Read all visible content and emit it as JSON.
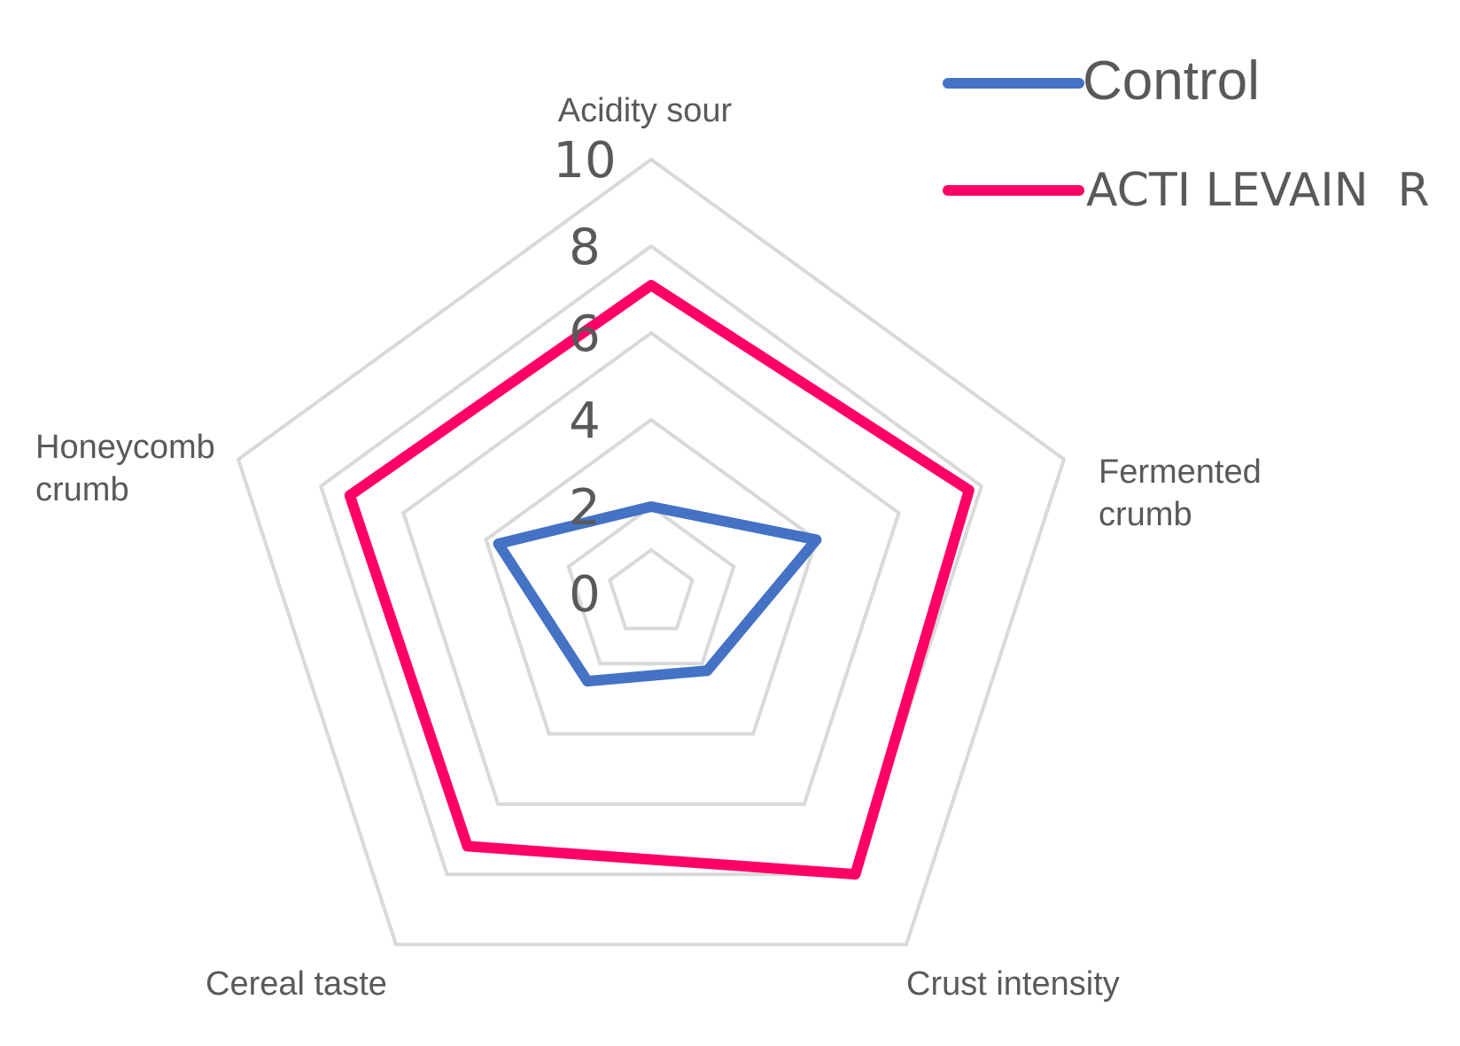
{
  "chart_data": {
    "type": "radar",
    "axes": [
      "Acidity sour",
      "Fermented crumb",
      "Crust intensity",
      "Cereal taste",
      "Honeycomb crumb"
    ],
    "axis_label_lines": [
      [
        "Acidity sour"
      ],
      [
        "Fermented",
        "crumb"
      ],
      [
        "Crust intensity"
      ],
      [
        "Cereal taste"
      ],
      [
        "Honeycomb",
        "crumb"
      ]
    ],
    "rlim": [
      0,
      10
    ],
    "ticks": [
      "0",
      "2",
      "4",
      "6",
      "8",
      "10"
    ],
    "tick_values": [
      0,
      2,
      4,
      6,
      8,
      10
    ],
    "grid": true,
    "legend_position": "top-right",
    "series": [
      {
        "name": "Control",
        "color": "#4472C4",
        "values": [
          2.0,
          4.0,
          2.2,
          2.5,
          3.7
        ]
      },
      {
        "name": "ACTI LEVAIN  R",
        "color": "#FF0066",
        "values": [
          7.1,
          7.7,
          8.0,
          7.2,
          7.3
        ]
      }
    ]
  }
}
